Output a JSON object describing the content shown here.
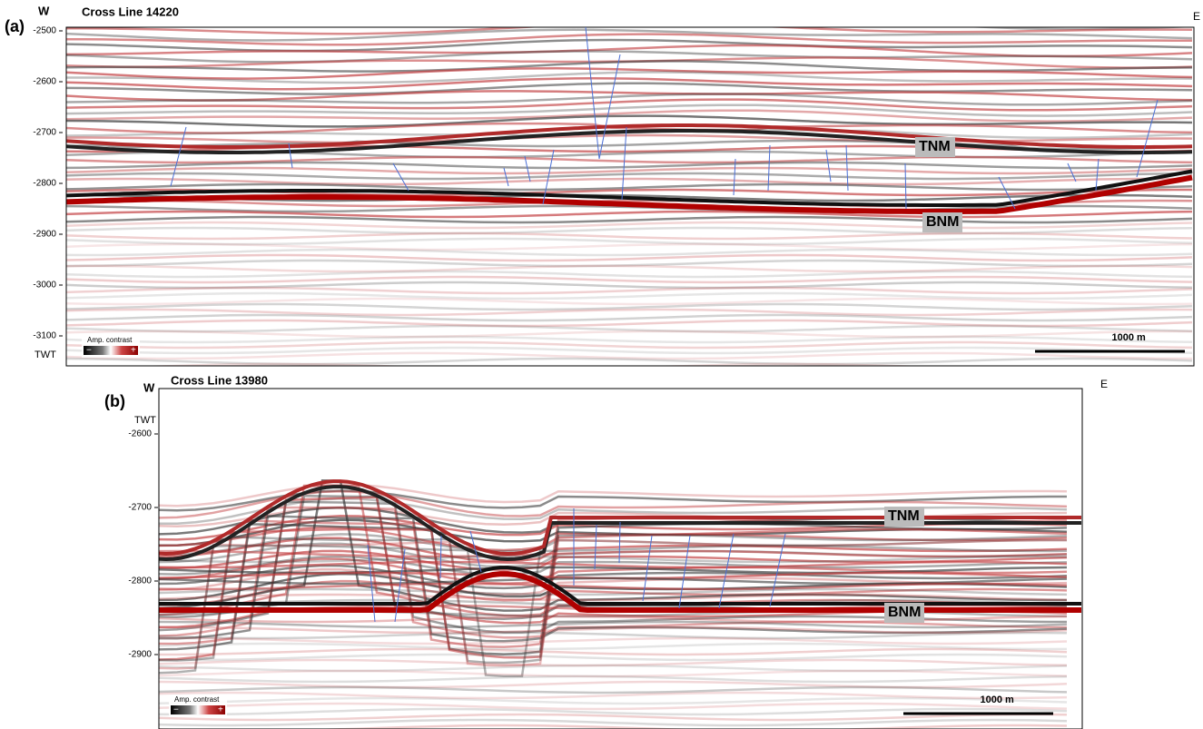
{
  "panels": [
    {
      "label": "(a)",
      "title": "Cross Line 14220",
      "west": "W",
      "east": "E",
      "axis_label": "TWT",
      "ticks": [
        -2500,
        -2600,
        -2700,
        -2800,
        -2900,
        -3000,
        -3100
      ],
      "horizons": [
        "TNM",
        "BNM"
      ],
      "legend": {
        "title": "Amp. contrast",
        "minus": "−",
        "plus": "+"
      },
      "scale": "1000 m"
    },
    {
      "label": "(b)",
      "title": "Cross Line 13980",
      "west": "W",
      "east": "E",
      "axis_label": "TWT",
      "ticks": [
        -2600,
        -2700,
        -2800,
        -2900
      ],
      "horizons": [
        "TNM",
        "BNM"
      ],
      "legend": {
        "title": "Amp. contrast",
        "minus": "−",
        "plus": "+"
      },
      "scale": "1000 m"
    }
  ]
}
